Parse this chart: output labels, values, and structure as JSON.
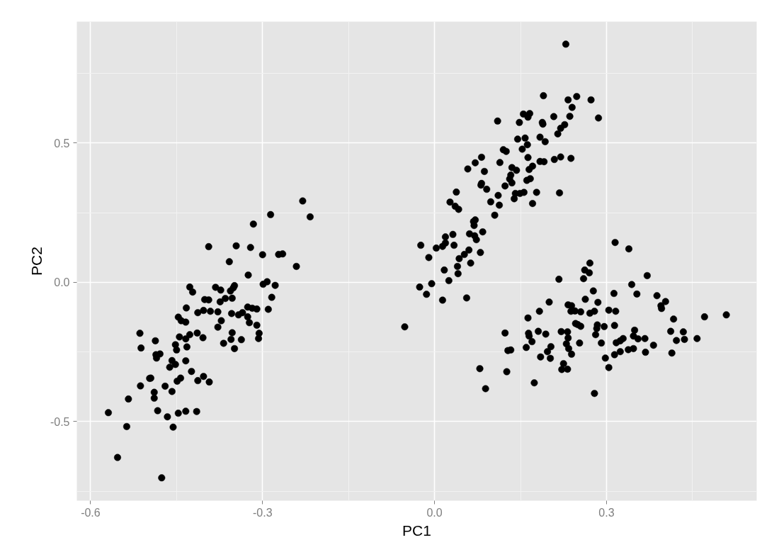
{
  "chart_data": {
    "type": "scatter",
    "xlabel": "PC1",
    "ylabel": "PC2",
    "xlim": [
      -0.624,
      0.562
    ],
    "ylim": [
      -0.784,
      0.936
    ],
    "xticks": [
      -0.6,
      -0.3,
      {
        "value": 0,
        "label": "0.0"
      },
      0.3
    ],
    "yticks": [
      -0.5,
      {
        "value": 0,
        "label": "0.0"
      },
      0.5
    ],
    "grid": true,
    "marker": "circle",
    "series": [
      {
        "color": "#000000",
        "x": [
          -0.427,
          -0.422,
          -0.382,
          -0.373,
          -0.401,
          -0.394,
          -0.374,
          -0.433,
          -0.413,
          -0.403,
          -0.391,
          -0.378,
          -0.372,
          -0.378,
          -0.447,
          -0.442,
          -0.434,
          -0.514,
          -0.487,
          -0.512,
          -0.445,
          -0.434,
          -0.427,
          -0.414,
          -0.404,
          -0.368,
          -0.452,
          -0.45,
          -0.432,
          -0.486,
          -0.479,
          -0.485,
          -0.458,
          -0.452,
          -0.462,
          -0.434,
          -0.424,
          -0.497,
          -0.495,
          -0.513,
          -0.47,
          -0.489,
          -0.489,
          -0.458,
          -0.449,
          -0.443,
          -0.413,
          -0.403,
          -0.393,
          -0.534,
          -0.569,
          -0.483,
          -0.466,
          -0.447,
          -0.434,
          -0.415,
          -0.537,
          -0.456,
          -0.553,
          -0.476,
          -0.23,
          -0.286,
          -0.217,
          -0.316,
          -0.394,
          -0.346,
          -0.321,
          -0.3,
          -0.272,
          -0.265,
          -0.358,
          -0.241,
          -0.325,
          -0.299,
          -0.292,
          -0.278,
          -0.356,
          -0.351,
          -0.349,
          -0.365,
          -0.353,
          -0.354,
          -0.342,
          -0.335,
          -0.326,
          -0.318,
          -0.31,
          -0.326,
          -0.323,
          -0.31,
          -0.284,
          -0.29,
          -0.353,
          -0.355,
          -0.337,
          -0.349,
          -0.306,
          -0.307,
          0.12,
          0.125,
          0.082,
          0.071,
          0.058,
          0.114,
          0.087,
          0.135,
          0.143,
          0.133,
          0.131,
          0.135,
          0.123,
          0.082,
          0.081,
          0.091,
          0.111,
          0.141,
          0.139,
          0.038,
          0.027,
          0.036,
          0.042,
          0.098,
          0.113,
          0.105,
          0.068,
          0.071,
          0.069,
          0.061,
          0.07,
          0.073,
          0.084,
          0.032,
          0.019,
          0.019,
          0.014,
          0.003,
          0.034,
          -0.024,
          -0.01,
          0.06,
          0.052,
          0.043,
          0.08,
          0.063,
          0.04,
          0.041,
          0.017,
          0.025,
          -0.005,
          -0.026,
          -0.014,
          0.014,
          0.056,
          -0.052,
          0.229,
          0.19,
          0.233,
          0.248,
          0.273,
          0.24,
          0.286,
          0.236,
          0.208,
          0.155,
          0.166,
          0.163,
          0.148,
          0.11,
          0.188,
          0.189,
          0.227,
          0.22,
          0.215,
          0.184,
          0.193,
          0.145,
          0.158,
          0.162,
          0.153,
          0.163,
          0.184,
          0.191,
          0.209,
          0.22,
          0.238,
          0.165,
          0.171,
          0.161,
          0.167,
          0.149,
          0.156,
          0.178,
          0.171,
          0.218,
          0.271,
          0.262,
          0.27,
          0.26,
          0.217,
          0.277,
          0.263,
          0.285,
          0.304,
          0.2,
          0.183,
          0.163,
          0.233,
          0.239,
          0.238,
          0.245,
          0.255,
          0.271,
          0.279,
          0.246,
          0.25,
          0.255,
          0.284,
          0.283,
          0.296,
          0.281,
          0.221,
          0.232,
          0.233,
          0.23,
          0.234,
          0.239,
          0.253,
          0.291,
          0.123,
          0.164,
          0.165,
          0.17,
          0.181,
          0.194,
          0.16,
          0.203,
          0.197,
          0.185,
          0.202,
          0.128,
          0.133,
          0.225,
          0.222,
          0.232,
          0.298,
          0.304,
          0.079,
          0.126,
          0.089,
          0.174,
          0.279,
          0.315,
          0.339,
          0.371,
          0.344,
          0.313,
          0.353,
          0.388,
          0.403,
          0.395,
          0.396,
          0.316,
          0.417,
          0.471,
          0.509,
          0.314,
          0.349,
          0.347,
          0.355,
          0.367,
          0.329,
          0.324,
          0.317,
          0.412,
          0.434,
          0.422,
          0.436,
          0.458,
          0.382,
          0.347,
          0.338,
          0.368,
          0.324,
          0.314,
          0.414
        ],
        "values": [
          -0.017,
          -0.035,
          -0.018,
          -0.028,
          -0.062,
          -0.063,
          -0.07,
          -0.092,
          -0.109,
          -0.101,
          -0.104,
          -0.106,
          -0.138,
          -0.161,
          -0.125,
          -0.138,
          -0.143,
          -0.183,
          -0.21,
          -0.236,
          -0.196,
          -0.203,
          -0.188,
          -0.182,
          -0.199,
          -0.219,
          -0.224,
          -0.243,
          -0.232,
          -0.26,
          -0.257,
          -0.272,
          -0.281,
          -0.295,
          -0.305,
          -0.282,
          -0.32,
          -0.345,
          -0.344,
          -0.372,
          -0.373,
          -0.395,
          -0.416,
          -0.392,
          -0.355,
          -0.344,
          -0.353,
          -0.338,
          -0.358,
          -0.419,
          -0.468,
          -0.461,
          -0.483,
          -0.47,
          -0.463,
          -0.464,
          -0.518,
          -0.52,
          -0.629,
          -0.702,
          0.292,
          0.243,
          0.235,
          0.209,
          0.128,
          0.131,
          0.125,
          0.099,
          0.1,
          0.102,
          0.074,
          0.057,
          0.026,
          -0.007,
          0.002,
          -0.011,
          -0.031,
          -0.02,
          -0.012,
          -0.058,
          -0.057,
          -0.112,
          -0.117,
          -0.109,
          -0.089,
          -0.093,
          -0.096,
          -0.124,
          -0.145,
          -0.154,
          -0.054,
          -0.097,
          -0.181,
          -0.205,
          -0.206,
          -0.238,
          -0.183,
          -0.202,
          0.476,
          0.47,
          0.449,
          0.429,
          0.407,
          0.43,
          0.398,
          0.412,
          0.402,
          0.385,
          0.371,
          0.357,
          0.346,
          0.355,
          0.349,
          0.334,
          0.312,
          0.319,
          0.3,
          0.324,
          0.288,
          0.273,
          0.262,
          0.289,
          0.277,
          0.241,
          0.218,
          0.224,
          0.204,
          0.174,
          0.167,
          0.153,
          0.181,
          0.172,
          0.163,
          0.141,
          0.129,
          0.123,
          0.133,
          0.133,
          0.089,
          0.116,
          0.1,
          0.085,
          0.107,
          0.069,
          0.057,
          0.031,
          0.044,
          0.006,
          -0.005,
          -0.017,
          -0.043,
          -0.064,
          -0.056,
          -0.16,
          0.855,
          0.67,
          0.655,
          0.667,
          0.655,
          0.628,
          0.59,
          0.596,
          0.595,
          0.604,
          0.606,
          0.593,
          0.574,
          0.579,
          0.574,
          0.568,
          0.566,
          0.553,
          0.533,
          0.521,
          0.505,
          0.514,
          0.518,
          0.494,
          0.478,
          0.448,
          0.434,
          0.433,
          0.441,
          0.45,
          0.445,
          0.405,
          0.417,
          0.366,
          0.372,
          0.319,
          0.323,
          0.323,
          0.283,
          0.321,
          0.069,
          0.044,
          0.034,
          0.013,
          0.011,
          -0.031,
          -0.061,
          -0.072,
          -0.1,
          -0.071,
          -0.104,
          -0.128,
          -0.081,
          -0.084,
          -0.104,
          -0.103,
          -0.106,
          -0.111,
          -0.104,
          -0.148,
          -0.152,
          -0.158,
          -0.153,
          -0.166,
          -0.159,
          -0.188,
          -0.177,
          -0.178,
          -0.2,
          -0.221,
          -0.238,
          -0.258,
          -0.218,
          -0.218,
          -0.182,
          -0.183,
          -0.193,
          -0.213,
          -0.176,
          -0.186,
          -0.234,
          -0.231,
          -0.249,
          -0.268,
          -0.273,
          -0.245,
          -0.243,
          -0.292,
          -0.313,
          -0.312,
          -0.272,
          -0.306,
          -0.31,
          -0.321,
          -0.382,
          -0.361,
          -0.399,
          0.143,
          0.12,
          0.024,
          -0.008,
          -0.04,
          -0.042,
          -0.048,
          -0.069,
          -0.084,
          -0.094,
          -0.104,
          -0.132,
          -0.124,
          -0.117,
          -0.155,
          -0.172,
          -0.193,
          -0.203,
          -0.202,
          -0.202,
          -0.21,
          -0.217,
          -0.176,
          -0.178,
          -0.209,
          -0.205,
          -0.202,
          -0.226,
          -0.238,
          -0.242,
          -0.251,
          -0.249,
          -0.26,
          -0.254
        ]
      }
    ]
  }
}
